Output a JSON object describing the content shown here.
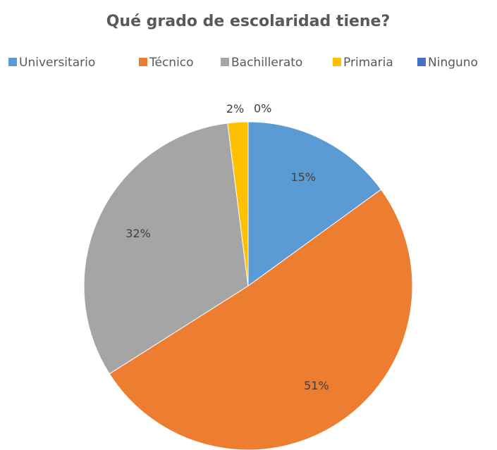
{
  "chart_data": {
    "type": "pie",
    "title": "Qué grado de escolaridad tiene?",
    "categories": [
      "Universitario",
      "Técnico",
      "Bachillerato",
      "Primaria",
      "Ninguno"
    ],
    "values": [
      15,
      51,
      32,
      2,
      0
    ],
    "value_labels": [
      "15%",
      "51%",
      "32%",
      "2%",
      "0%"
    ],
    "colors": [
      "#5b9bd5",
      "#ed7d31",
      "#a5a5a5",
      "#ffc000",
      "#4472c4"
    ],
    "legend": "top"
  }
}
